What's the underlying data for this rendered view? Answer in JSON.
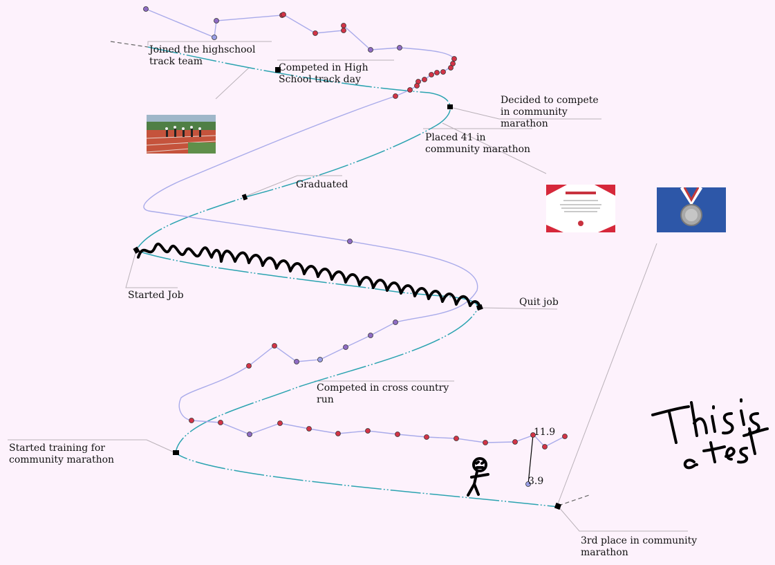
{
  "colors": {
    "background": "#fdf2fc",
    "timeline": "#2aa3b0",
    "data_line": "#a9abea",
    "point_red": "#d23447",
    "point_purple": "#8f6cc4",
    "point_blue": "#9a9ee6",
    "leader": "#b9b1b8",
    "ink": "#000000"
  },
  "milestones": [
    {
      "label": "Joined the highschool track team"
    },
    {
      "label": "Competed in High School track day"
    },
    {
      "label": "Decided to compete in community marathon"
    },
    {
      "label": "Placed 41 in community marathon"
    },
    {
      "label": "Graduated"
    },
    {
      "label": "Started Job"
    },
    {
      "label": "Quit job"
    },
    {
      "label": "Competed in cross country run"
    },
    {
      "label": "Started training for community marathon"
    },
    {
      "label": "3rd place in community marathon"
    }
  ],
  "data_labels": {
    "high": "11.9",
    "low": "3.9"
  },
  "images": [
    {
      "name": "running-track-photo"
    },
    {
      "name": "certificate-image"
    },
    {
      "name": "medal-image"
    }
  ],
  "handwriting": "This is a test"
}
